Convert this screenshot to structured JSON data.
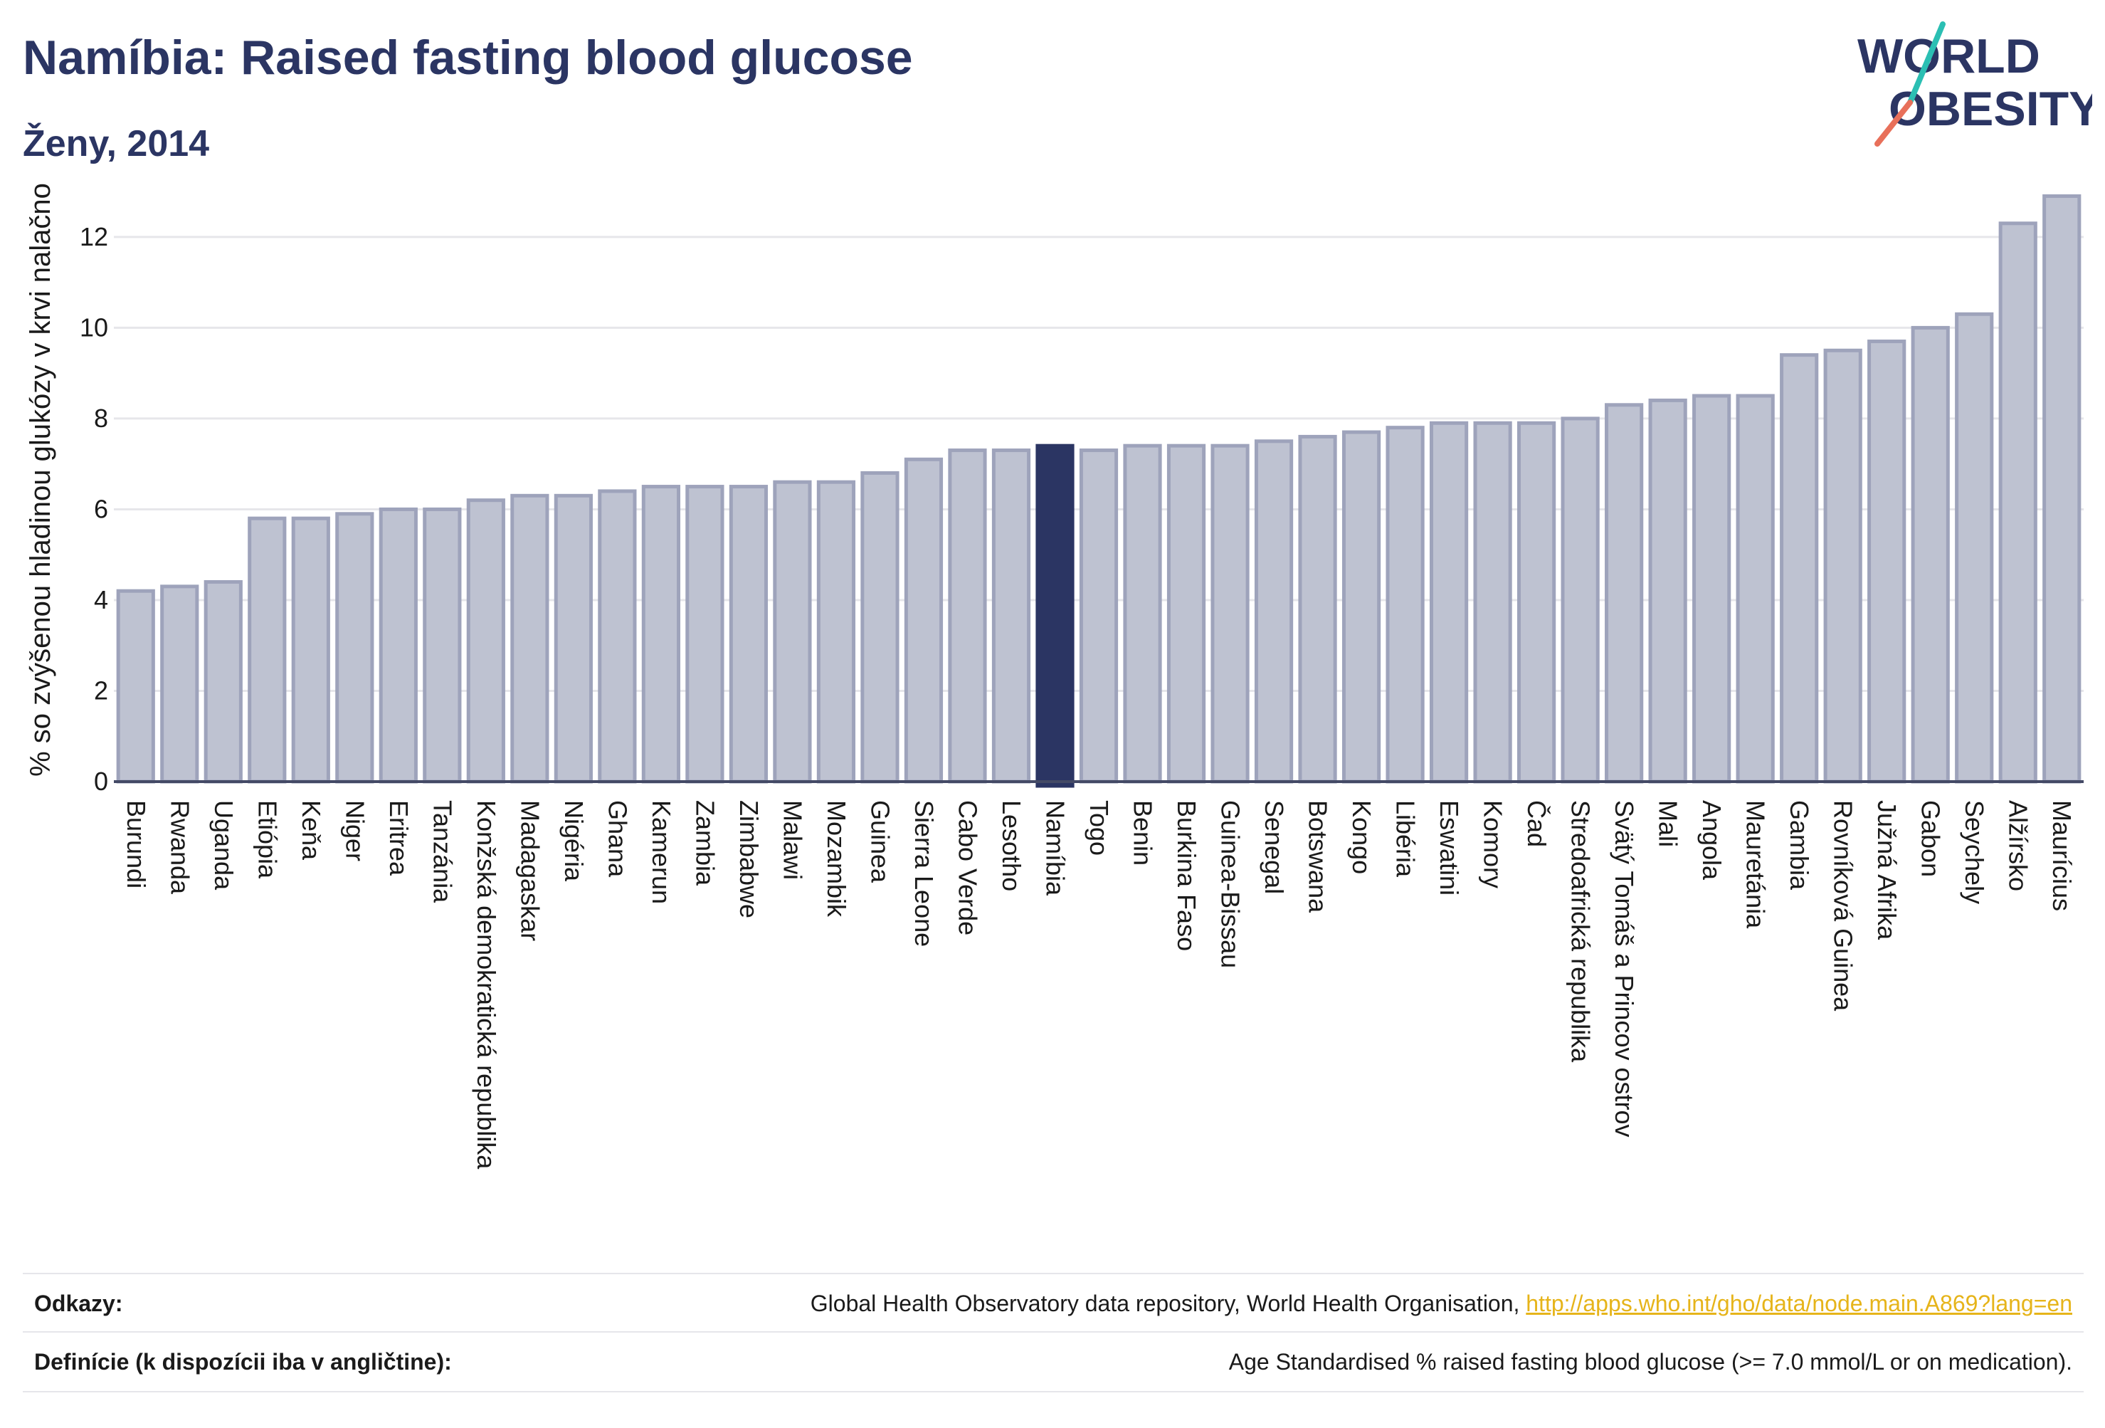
{
  "header": {
    "title": "Namíbia: Raised fasting blood glucose",
    "subtitle": "Ženy, 2014"
  },
  "logo": {
    "line1": "WORLD",
    "line2": "OBESITY",
    "text_color": "#2b3563",
    "slash_color_top": "#2bbfb3",
    "slash_color_bottom": "#e8705a"
  },
  "colors": {
    "bar_fill": "#bec2d1",
    "bar_stroke": "#9ea3bb",
    "highlight": "#2b3563",
    "grid": "#e6e6ea",
    "axis_text": "#1a1a1a"
  },
  "chart_data": {
    "type": "bar",
    "ylabel": "% so zvýšenou hladinou glukózy v krvi nalačno",
    "xlabel": "",
    "ylim": [
      0,
      13.3
    ],
    "yticks": [
      0,
      2,
      4,
      6,
      8,
      10,
      12
    ],
    "grid": true,
    "highlight_category": "Namíbia",
    "categories": [
      "Burundi",
      "Rwanda",
      "Uganda",
      "Etiópia",
      "Keňa",
      "Niger",
      "Eritrea",
      "Tanzánia",
      "Konžská demokratická republika",
      "Madagaskar",
      "Nigéria",
      "Ghana",
      "Kamerun",
      "Zambia",
      "Zimbabwe",
      "Malawi",
      "Mozambik",
      "Guinea",
      "Sierra Leone",
      "Cabo Verde",
      "Lesotho",
      "Namíbia",
      "Togo",
      "Benin",
      "Burkina Faso",
      "Guinea-Bissau",
      "Senegal",
      "Botswana",
      "Kongo",
      "Libéria",
      "Eswatini",
      "Komory",
      "Čad",
      "Stredoafrická republika",
      "Svätý Tomáš a Princov ostrov",
      "Mali",
      "Angola",
      "Mauretánia",
      "Gambia",
      "Rovníková Guinea",
      "Južná Afrika",
      "Gabon",
      "Seychely",
      "Alžírsko",
      "Maurícius"
    ],
    "values": [
      4.2,
      4.3,
      4.4,
      5.8,
      5.8,
      5.9,
      6.0,
      6.0,
      6.2,
      6.3,
      6.3,
      6.4,
      6.5,
      6.5,
      6.5,
      6.6,
      6.6,
      6.8,
      7.1,
      7.3,
      7.3,
      7.4,
      7.3,
      7.4,
      7.4,
      7.4,
      7.5,
      7.6,
      7.7,
      7.8,
      7.9,
      7.9,
      7.9,
      8.0,
      8.3,
      8.4,
      8.5,
      8.5,
      9.4,
      9.5,
      9.7,
      10.0,
      10.3,
      12.3,
      12.9
    ]
  },
  "footer": {
    "references_label": "Odkazy:",
    "references_text": "Global Health Observatory data repository, World Health Organisation, ",
    "references_link": "http://apps.who.int/gho/data/node.main.A869?lang=en",
    "definitions_label": "Definície (k dispozícii iba v angličtine):",
    "definitions_text": "Age Standardised % raised fasting blood glucose (>= 7.0 mmol/L or on medication)."
  }
}
